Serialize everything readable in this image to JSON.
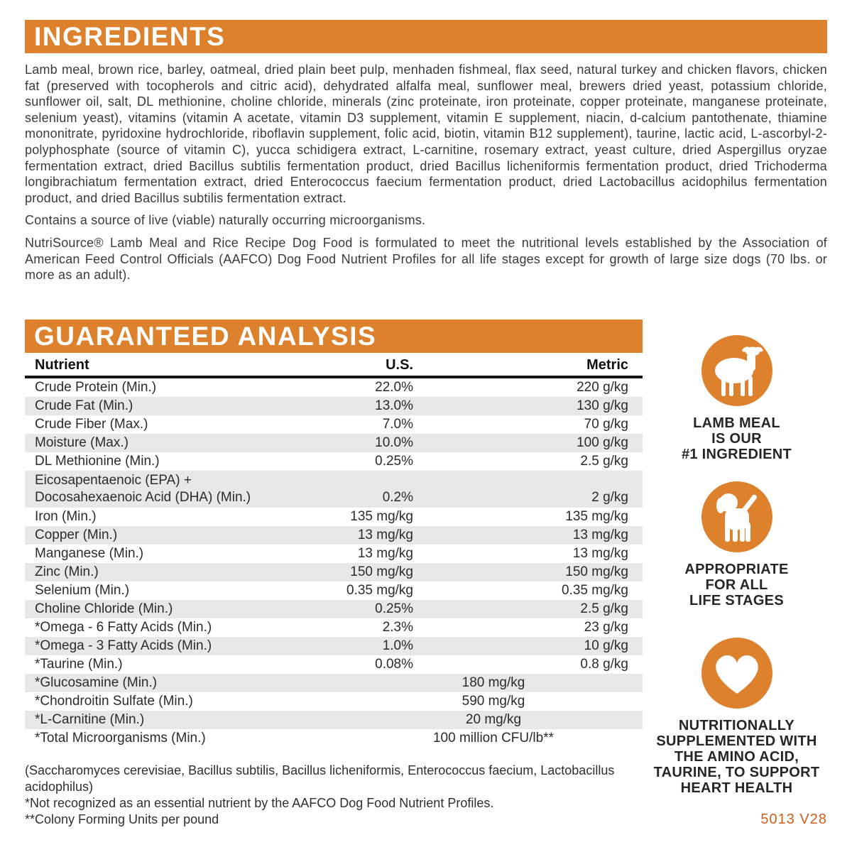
{
  "colors": {
    "orange": "#DE812D",
    "row_alt": "#E8E8E8",
    "code_orange": "#C9611D"
  },
  "ingredients": {
    "title": "INGREDIENTS",
    "body": "Lamb meal, brown rice, barley, oatmeal, dried plain beet pulp, menhaden fishmeal, flax seed, natural turkey and chicken flavors, chicken fat (preserved with tocopherols and citric acid), dehydrated alfalfa meal, sunflower meal, brewers dried yeast, potassium chloride, sunflower oil, salt, DL methionine, choline chloride, minerals (zinc proteinate, iron proteinate, copper proteinate, manganese proteinate, selenium yeast), vitamins (vitamin A acetate, vitamin D3 supplement, vitamin E supplement, niacin, d-calcium pantothenate, thiamine mononitrate, pyridoxine hydrochloride, riboflavin supplement, folic acid, biotin, vitamin B12 supplement), taurine, lactic acid, L-ascorbyl-2-polyphosphate (source of vitamin C), yucca schidigera extract, L-carnitine, rosemary extract, yeast culture, dried Aspergillus oryzae fermentation extract, dried Bacillus subtilis fermentation product, dried Bacillus licheniformis fermentation product, dried Trichoderma longibrachiatum fermentation extract, dried Enterococcus faecium fermentation product, dried Lactobacillus acidophilus fermentation product, and dried Bacillus subtilis fermentation extract.",
    "note": "Contains a source of live (viable) naturally occurring microorganisms.",
    "aafco": "NutriSource® Lamb Meal and Rice Recipe Dog Food is formulated to meet the nutritional levels established by the Association of American Feed Control Officials (AAFCO) Dog Food Nutrient Profiles for all life stages except for growth of large size dogs (70 lbs. or more as an adult)."
  },
  "analysis": {
    "title": "GUARANTEED ANALYSIS",
    "columns": [
      "Nutrient",
      "U.S.",
      "Metric"
    ],
    "rows": [
      {
        "nutrient": "Crude Protein (Min.)",
        "us": "22.0%",
        "metric": "220 g/kg"
      },
      {
        "nutrient": "Crude Fat (Min.)",
        "us": "13.0%",
        "metric": "130 g/kg"
      },
      {
        "nutrient": "Crude Fiber (Max.)",
        "us": "7.0%",
        "metric": "70 g/kg"
      },
      {
        "nutrient": "Moisture (Max.)",
        "us": "10.0%",
        "metric": "100 g/kg"
      },
      {
        "nutrient": "DL Methionine (Min.)",
        "us": "0.25%",
        "metric": "2.5 g/kg"
      },
      {
        "nutrient": "Eicosapentaenoic (EPA) +\nDocosahexaenoic Acid (DHA) (Min.)",
        "us": "0.2%",
        "metric": "2 g/kg"
      },
      {
        "nutrient": "Iron (Min.)",
        "us": "135 mg/kg",
        "metric": "135 mg/kg"
      },
      {
        "nutrient": "Copper (Min.)",
        "us": "13 mg/kg",
        "metric": "13 mg/kg"
      },
      {
        "nutrient": "Manganese (Min.)",
        "us": "13 mg/kg",
        "metric": "13 mg/kg"
      },
      {
        "nutrient": "Zinc (Min.)",
        "us": "150 mg/kg",
        "metric": "150 mg/kg"
      },
      {
        "nutrient": "Selenium (Min.)",
        "us": "0.35 mg/kg",
        "metric": "0.35 mg/kg"
      },
      {
        "nutrient": "Choline Chloride (Min.)",
        "us": "0.25%",
        "metric": "2.5 g/kg"
      },
      {
        "nutrient": "*Omega - 6 Fatty Acids (Min.)",
        "us": "2.3%",
        "metric": "23 g/kg"
      },
      {
        "nutrient": "*Omega - 3 Fatty Acids (Min.)",
        "us": "1.0%",
        "metric": "10 g/kg"
      },
      {
        "nutrient": "*Taurine (Min.)",
        "us": "0.08%",
        "metric": "0.8 g/kg"
      },
      {
        "nutrient": "*Glucosamine (Min.)",
        "span": "180 mg/kg"
      },
      {
        "nutrient": "*Chondroitin Sulfate (Min.)",
        "span": "590 mg/kg"
      },
      {
        "nutrient": "*L-Carnitine (Min.)",
        "span": "20 mg/kg"
      },
      {
        "nutrient": "*Total Microorganisms (Min.)",
        "span": "100 million CFU/lb**"
      }
    ],
    "footnotes": [
      "(Saccharomyces cerevisiae, Bacillus subtilis, Bacillus licheniformis, Enterococcus faecium, Lactobacillus acidophilus)",
      "*Not recognized as an essential nutrient by the AAFCO Dog Food Nutrient Profiles.",
      "**Colony Forming Units per pound"
    ]
  },
  "badges": [
    {
      "icon": "lamb-icon",
      "label": "LAMB MEAL\nIS OUR\n#1 INGREDIENT"
    },
    {
      "icon": "puppy-icon",
      "label": "APPROPRIATE\nFOR ALL\nLIFE STAGES"
    },
    {
      "icon": "heart-icon",
      "label": "NUTRITIONALLY\nSUPPLEMENTED WITH\nTHE AMINO ACID,\nTAURINE, TO SUPPORT\nHEART HEALTH"
    }
  ],
  "footer": {
    "code": "5013 V28"
  }
}
